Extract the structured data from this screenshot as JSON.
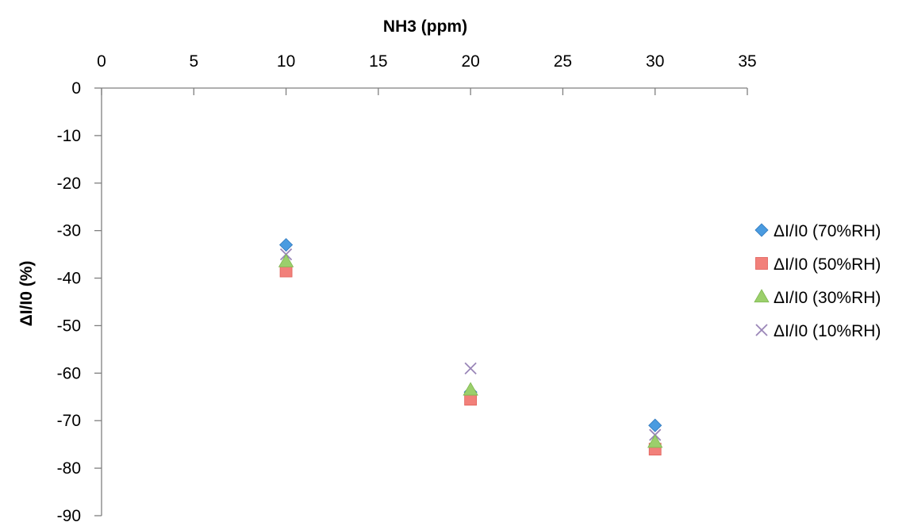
{
  "chart_data": {
    "type": "scatter",
    "title": "",
    "xlabel": "NH3 (ppm)",
    "ylabel": "ΔI/I0 (%)",
    "xlim": [
      0,
      35
    ],
    "ylim": [
      -90,
      0
    ],
    "x_ticks": [
      0,
      5,
      10,
      15,
      20,
      25,
      30,
      35
    ],
    "y_ticks": [
      0,
      -10,
      -20,
      -30,
      -40,
      -50,
      -60,
      -70,
      -80,
      -90
    ],
    "x_axis_position": "top",
    "grid": false,
    "legend_position": "right",
    "series": [
      {
        "name": "ΔI/I0 (70%RH)",
        "marker": "diamond",
        "color": "#4a9be0",
        "x": [
          10,
          20,
          30
        ],
        "y": [
          -33,
          -64,
          -71
        ]
      },
      {
        "name": "ΔI/I0 (50%RH)",
        "marker": "square",
        "color": "#f2807a",
        "x": [
          10,
          20,
          30
        ],
        "y": [
          -38.5,
          -65.5,
          -76
        ]
      },
      {
        "name": "ΔI/I0 (30%RH)",
        "marker": "triangle",
        "color": "#9bcf6b",
        "x": [
          10,
          20,
          30
        ],
        "y": [
          -36.5,
          -63.5,
          -74.5
        ]
      },
      {
        "name": "ΔI/I0 (10%RH)",
        "marker": "x",
        "color": "#9a86b8",
        "x": [
          10,
          20,
          30
        ],
        "y": [
          -35,
          -59,
          -73
        ]
      }
    ]
  }
}
